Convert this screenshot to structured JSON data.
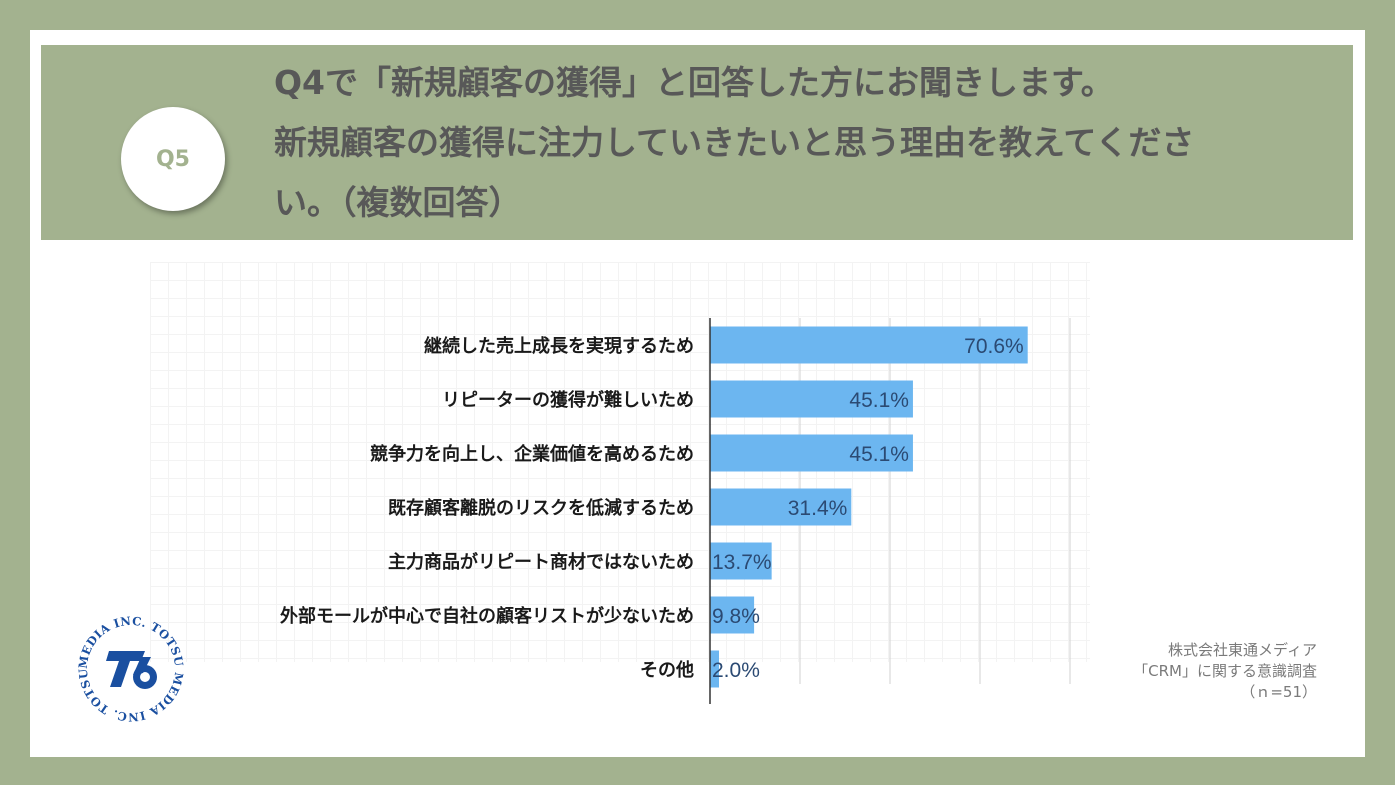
{
  "question": {
    "badge": "Q5",
    "lines": [
      "Q4で「新規顧客の獲得」と回答した方にお聞きします。",
      "新規顧客の獲得に注力していきたいと思う理由を教えてくださ",
      "い。（複数回答）"
    ]
  },
  "chart_data": {
    "type": "bar",
    "orientation": "horizontal",
    "categories": [
      "継続した売上成長を実現するため",
      "リピーターの獲得が難しいため",
      "競争力を向上し、企業価値を高めるため",
      "既存顧客離脱のリスクを低減するため",
      "主力商品がリピート商材ではないため",
      "外部モールが中心で自社の顧客リストが少ないため",
      "その他"
    ],
    "values": [
      70.6,
      45.1,
      45.1,
      31.4,
      13.7,
      9.8,
      2.0
    ],
    "data_labels": [
      "70.6%",
      "45.1%",
      "45.1%",
      "31.4%",
      "13.7%",
      "9.8%",
      "2.0%"
    ],
    "xlim": [
      0,
      80
    ],
    "grid": true,
    "bar_color": "#6cb6f0",
    "label_color": "#2b4a73"
  },
  "source": {
    "line1": "株式会社東通メディア",
    "line2": "「CRM」に関する意識調査",
    "line3": "（ｎ=51）"
  },
  "logo": {
    "text_ring": "MEDIA INC. TOTSU MEDIA INC. TOTSU",
    "color": "#1a4fa0"
  },
  "colors": {
    "frame": "#a3b28f",
    "question_text": "#585858",
    "badge_text": "#a3b28f"
  }
}
